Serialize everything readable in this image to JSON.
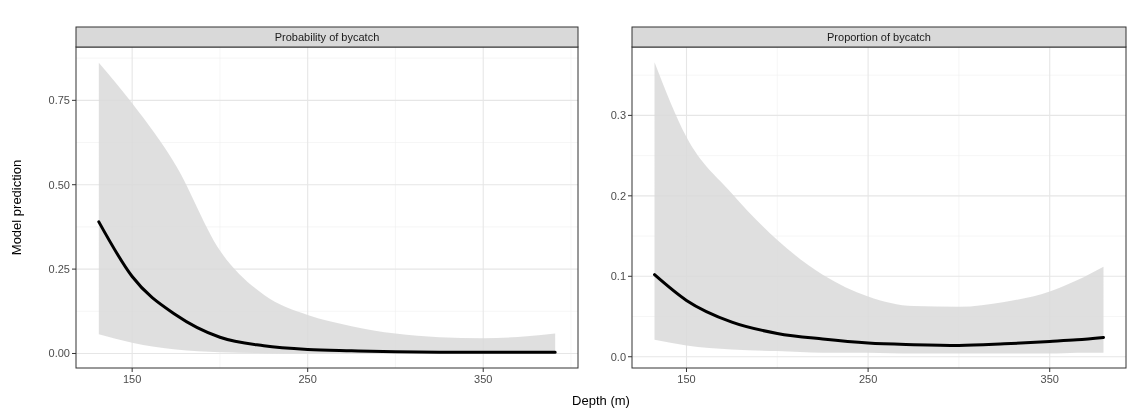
{
  "chart_data": [
    {
      "type": "line",
      "title": "Probability of bycatch",
      "xlabel": "Depth (m)",
      "ylabel": "Model prediction",
      "xlim": [
        118,
        404
      ],
      "ylim": [
        -0.043,
        0.908
      ],
      "xticks": [
        150,
        250,
        350
      ],
      "yticks": [
        {
          "value": 0,
          "label": "0.00"
        },
        {
          "value": 0.25,
          "label": "0.25"
        },
        {
          "value": 0.5,
          "label": "0.50"
        },
        {
          "value": 0.75,
          "label": "0.75"
        }
      ],
      "grid": true,
      "series": [
        {
          "color": "#000000",
          "x": [
            131,
            150,
            175,
            200,
            225,
            250,
            275,
            300,
            325,
            350,
            375,
            391
          ],
          "values": [
            0.39,
            0.228,
            0.114,
            0.048,
            0.023,
            0.012,
            0.008,
            0.005,
            0.004,
            0.004,
            0.004,
            0.004
          ],
          "lower": [
            0.057,
            0.032,
            0.012,
            0.004,
            0.001,
            0,
            0,
            0,
            0,
            0,
            0,
            0
          ],
          "upper": [
            0.861,
            0.741,
            0.556,
            0.305,
            0.174,
            0.114,
            0.081,
            0.059,
            0.048,
            0.045,
            0.051,
            0.059
          ]
        }
      ]
    },
    {
      "type": "line",
      "title": "Proportion of bycatch",
      "xlim": [
        120,
        392
      ],
      "ylim": [
        -0.014,
        0.385
      ],
      "xticks": [
        150,
        250,
        350
      ],
      "yticks": [
        {
          "value": 0,
          "label": "0.0"
        },
        0.1,
        0.2,
        0.3
      ],
      "grid": true,
      "series": [
        {
          "color": "#000000",
          "x": [
            132.4,
            150,
            175,
            200,
            225,
            250,
            275,
            300,
            325,
            350,
            365,
            379.6
          ],
          "values": [
            0.102,
            0.07,
            0.043,
            0.029,
            0.022,
            0.017,
            0.015,
            0.014,
            0.016,
            0.019,
            0.021,
            0.024
          ],
          "lower": [
            0.021,
            0.014,
            0.009,
            0.007,
            0.005,
            0.005,
            0.004,
            0.004,
            0.004,
            0.004,
            0.005,
            0.005
          ],
          "upper": [
            0.366,
            0.273,
            0.203,
            0.145,
            0.102,
            0.075,
            0.063,
            0.062,
            0.068,
            0.081,
            0.095,
            0.112
          ]
        }
      ]
    }
  ]
}
